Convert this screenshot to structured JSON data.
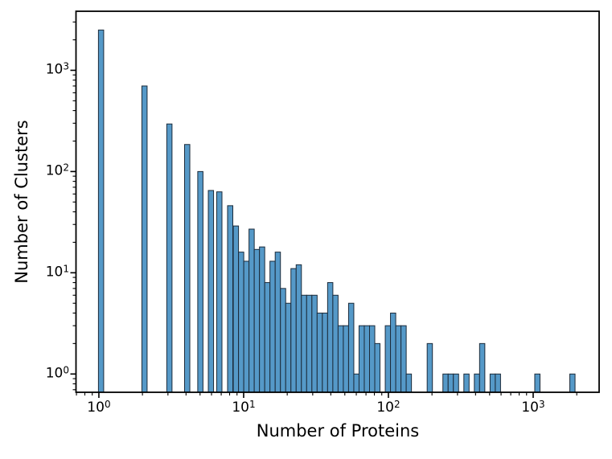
{
  "chart_data": {
    "type": "histogram",
    "title": "",
    "xlabel": "Number of Proteins",
    "ylabel": "Number of Clusters",
    "x_scale": "log",
    "y_scale": "log",
    "xlim": [
      0.695,
      2855
    ],
    "ylim": [
      0.66,
      3830
    ],
    "grid": false,
    "legend": null,
    "x_tick_exponents": [
      0,
      1,
      2,
      3
    ],
    "y_tick_exponents": [
      0,
      1,
      2,
      3
    ],
    "bin_width_decades": 0.0362,
    "bars": [
      [
        -0.003,
        2500
      ],
      [
        0.297,
        700
      ],
      [
        0.469,
        295
      ],
      [
        0.592,
        185
      ],
      [
        0.683,
        100
      ],
      [
        0.756,
        65
      ],
      [
        0.814,
        63
      ],
      [
        0.889,
        46
      ],
      [
        0.9284,
        29
      ],
      [
        0.9646,
        16
      ],
      [
        1.0008,
        13
      ],
      [
        1.037,
        27
      ],
      [
        1.0732,
        17
      ],
      [
        1.1094,
        18
      ],
      [
        1.1456,
        8
      ],
      [
        1.1818,
        13
      ],
      [
        1.218,
        16
      ],
      [
        1.2542,
        7
      ],
      [
        1.2904,
        5
      ],
      [
        1.3266,
        11
      ],
      [
        1.3628,
        12
      ],
      [
        1.399,
        6
      ],
      [
        1.4352,
        6
      ],
      [
        1.4714,
        6
      ],
      [
        1.5076,
        4
      ],
      [
        1.5438,
        4
      ],
      [
        1.58,
        8
      ],
      [
        1.6162,
        6
      ],
      [
        1.6524,
        3
      ],
      [
        1.6886,
        3
      ],
      [
        1.7248,
        5
      ],
      [
        1.761,
        1
      ],
      [
        1.7972,
        3
      ],
      [
        1.8334,
        3
      ],
      [
        1.8696,
        3
      ],
      [
        1.9058,
        2
      ],
      [
        1.9782,
        3
      ],
      [
        2.0144,
        4
      ],
      [
        2.0506,
        3
      ],
      [
        2.0868,
        3
      ],
      [
        2.123,
        1
      ],
      [
        2.2678,
        2
      ],
      [
        2.3764,
        1
      ],
      [
        2.4126,
        1
      ],
      [
        2.4488,
        1
      ],
      [
        2.5212,
        1
      ],
      [
        2.5936,
        1
      ],
      [
        2.6298,
        2
      ],
      [
        2.7022,
        1
      ],
      [
        2.7384,
        1
      ],
      [
        3.011,
        1
      ],
      [
        3.253,
        1
      ]
    ],
    "colors": {
      "bar_fill": "#5599c8",
      "bar_edge": "#1c2b3a",
      "axis": "#000000",
      "background": "#ffffff",
      "text": "#000000"
    }
  }
}
